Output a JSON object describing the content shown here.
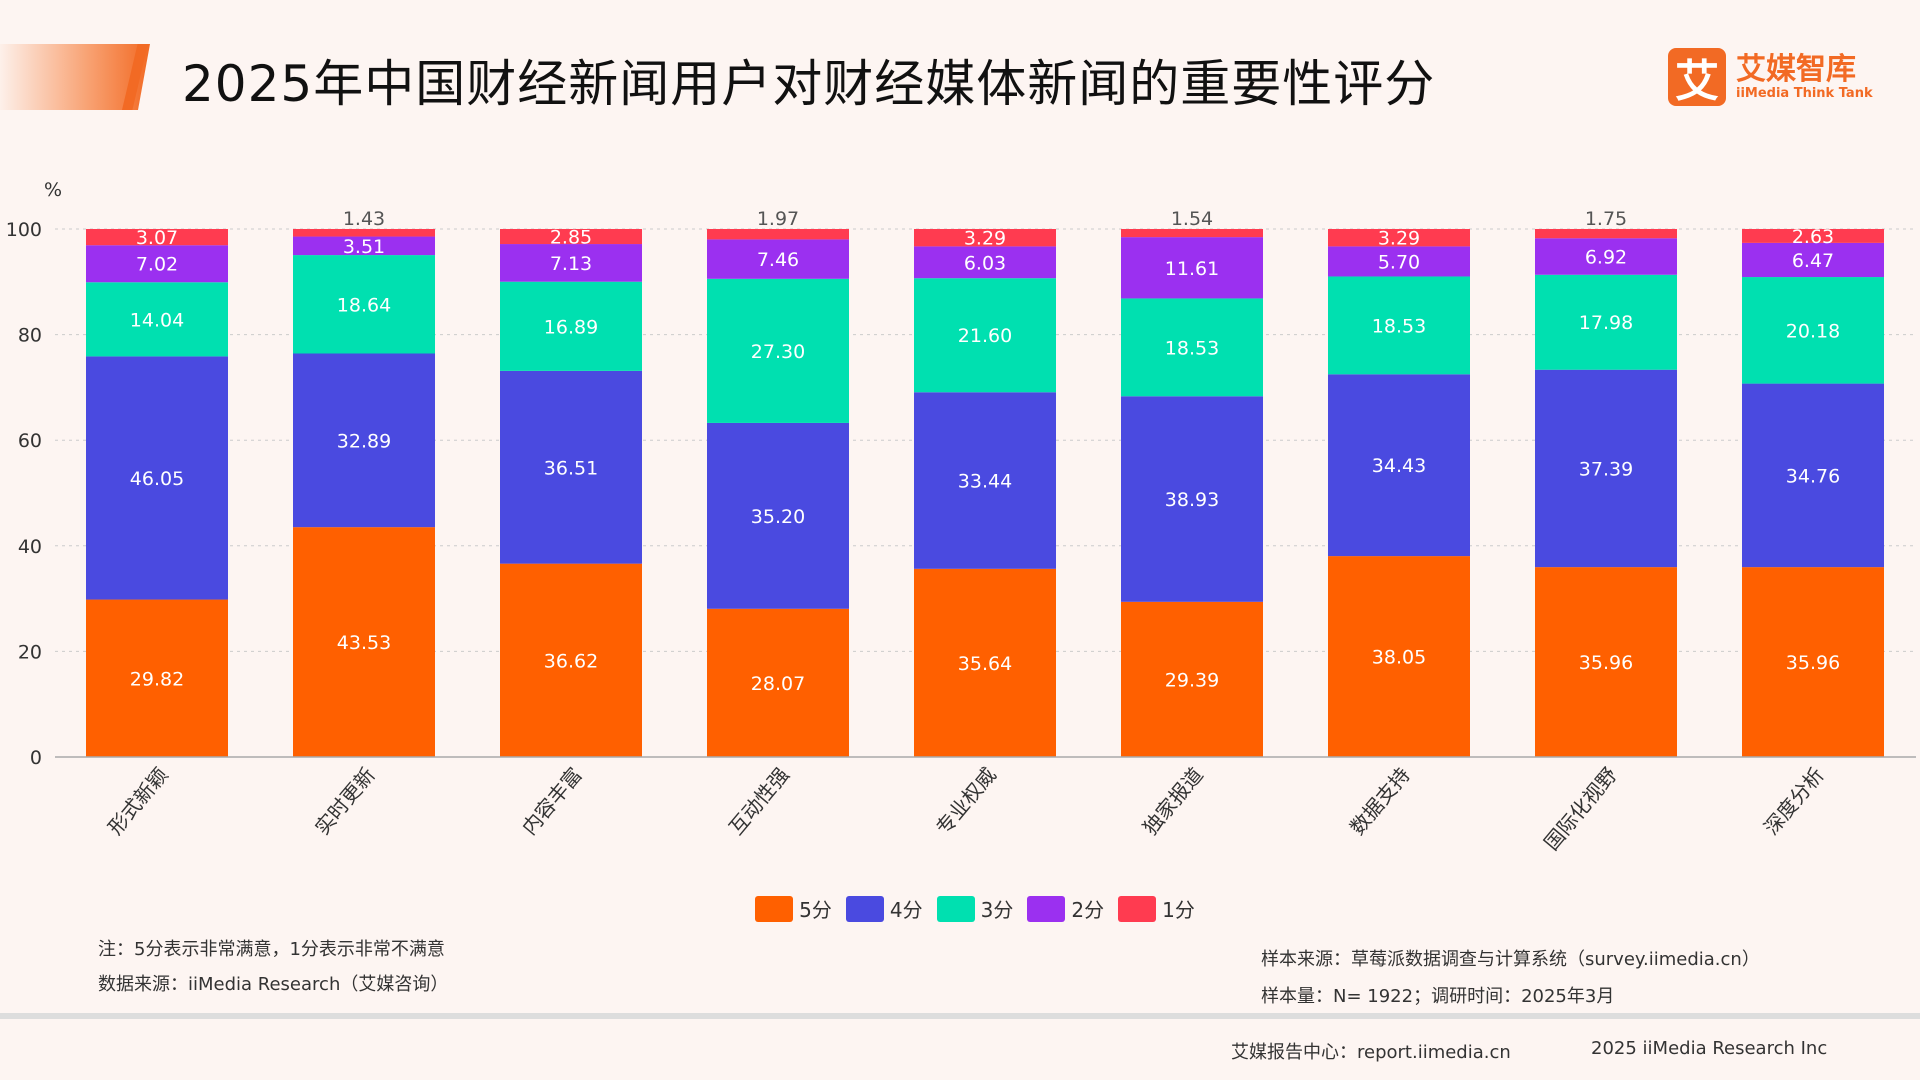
{
  "header": {
    "title": "2025年中国财经新闻用户对财经媒体新闻的重要性评分",
    "logo_cn": "艾媒智库",
    "logo_en": "iiMedia Think Tank",
    "logo_mark": "艾"
  },
  "chart_data": {
    "type": "bar",
    "stacked": true,
    "ylabel": "%",
    "ylim": [
      0,
      100
    ],
    "yticks": [
      0,
      20,
      40,
      60,
      80,
      100
    ],
    "grid": true,
    "categories": [
      "形式新颖",
      "实时更新",
      "内容丰富",
      "互动性强",
      "专业权威",
      "独家报道",
      "数据支持",
      "国际化视野",
      "深度分析"
    ],
    "series": [
      {
        "name": "5分",
        "color": "#ff6000",
        "values": [
          29.82,
          43.53,
          36.62,
          28.07,
          35.64,
          29.39,
          38.05,
          35.96,
          35.96
        ]
      },
      {
        "name": "4分",
        "color": "#4a4ae0",
        "values": [
          46.05,
          32.89,
          36.51,
          35.2,
          33.44,
          38.93,
          34.43,
          37.39,
          34.76
        ]
      },
      {
        "name": "3分",
        "color": "#00e0b0",
        "values": [
          14.04,
          18.64,
          16.89,
          27.3,
          21.6,
          18.53,
          18.53,
          17.98,
          20.18
        ]
      },
      {
        "name": "2分",
        "color": "#9b30f0",
        "values": [
          7.02,
          3.51,
          7.13,
          7.46,
          6.03,
          11.61,
          5.7,
          6.92,
          6.47
        ]
      },
      {
        "name": "1分",
        "color": "#ff3b50",
        "values": [
          3.07,
          1.43,
          2.85,
          1.97,
          3.29,
          1.54,
          3.29,
          1.75,
          2.63
        ]
      }
    ],
    "legend_position": "bottom"
  },
  "notes": {
    "note1": "注：5分表示非常满意，1分表示非常不满意",
    "source": "数据来源：iiMedia Research（艾媒咨询）",
    "sample_source": "样本来源：草莓派数据调查与计算系统（survey.iimedia.cn）",
    "sample_size": "样本量：N= 1922；调研时间：2025年3月"
  },
  "footer": {
    "center": "艾媒报告中心：report.iimedia.cn",
    "copyright": "2025 iiMedia Research Inc"
  }
}
